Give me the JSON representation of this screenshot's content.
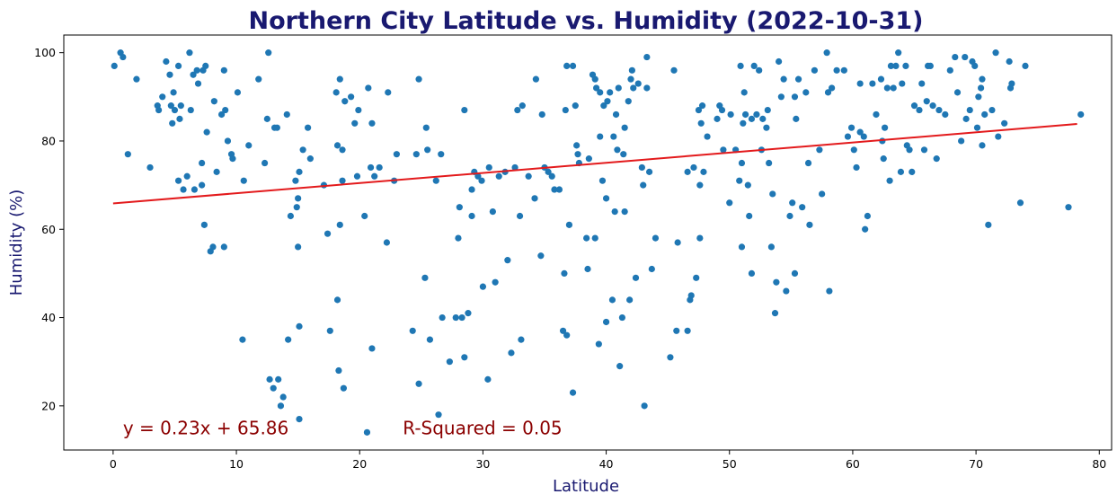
{
  "chart_data": {
    "type": "scatter",
    "title": "Northern City Latitude vs. Humidity (2022-10-31)",
    "xlabel": "Latitude",
    "ylabel": "Humidity (%)",
    "xlim": [
      -4,
      81
    ],
    "ylim": [
      10,
      104
    ],
    "x_ticks": [
      "0",
      "10",
      "20",
      "30",
      "40",
      "50",
      "60",
      "70",
      "80"
    ],
    "x_tick_values": [
      0,
      10,
      20,
      30,
      40,
      50,
      60,
      70,
      80
    ],
    "y_ticks": [
      "20",
      "40",
      "60",
      "80",
      "100"
    ],
    "y_tick_values": [
      20,
      40,
      60,
      80,
      100
    ],
    "grid": false,
    "colors": {
      "points": "#1f77b4",
      "regression": "#e31a1c",
      "annotation": "#8b0000",
      "title": "#191970"
    },
    "regression": {
      "slope": 0.23,
      "intercept": 65.86,
      "x_range": [
        0,
        78.2
      ]
    },
    "annotations": [
      {
        "text": "y = 0.23x + 65.86",
        "x": 0.8,
        "y": 15
      },
      {
        "text": "R-Squared = 0.05",
        "x": 23.5,
        "y": 15
      }
    ],
    "points": [
      [
        0.1,
        97
      ],
      [
        0.6,
        100
      ],
      [
        0.8,
        99
      ],
      [
        1.2,
        77
      ],
      [
        1.9,
        94
      ],
      [
        3.0,
        74
      ],
      [
        3.6,
        88
      ],
      [
        3.7,
        87
      ],
      [
        4.0,
        90
      ],
      [
        4.3,
        98
      ],
      [
        4.6,
        95
      ],
      [
        4.7,
        88
      ],
      [
        4.8,
        84
      ],
      [
        4.9,
        91
      ],
      [
        5.0,
        87
      ],
      [
        5.3,
        97
      ],
      [
        5.3,
        71
      ],
      [
        5.4,
        85
      ],
      [
        5.5,
        88
      ],
      [
        5.7,
        69
      ],
      [
        6.0,
        72
      ],
      [
        6.2,
        100
      ],
      [
        6.3,
        87
      ],
      [
        6.5,
        95
      ],
      [
        6.6,
        69
      ],
      [
        6.8,
        96
      ],
      [
        6.9,
        93
      ],
      [
        7.2,
        75
      ],
      [
        7.2,
        70
      ],
      [
        7.3,
        96
      ],
      [
        7.5,
        97
      ],
      [
        7.4,
        61
      ],
      [
        7.6,
        82
      ],
      [
        7.9,
        55
      ],
      [
        8.1,
        56
      ],
      [
        8.2,
        89
      ],
      [
        8.4,
        73
      ],
      [
        8.8,
        86
      ],
      [
        9.0,
        96
      ],
      [
        9.0,
        56
      ],
      [
        9.1,
        87
      ],
      [
        9.3,
        80
      ],
      [
        9.6,
        77
      ],
      [
        9.7,
        76
      ],
      [
        10.1,
        91
      ],
      [
        10.5,
        35
      ],
      [
        10.6,
        71
      ],
      [
        11.0,
        79
      ],
      [
        11.8,
        94
      ],
      [
        12.3,
        75
      ],
      [
        12.5,
        85
      ],
      [
        12.6,
        100
      ],
      [
        12.7,
        26
      ],
      [
        13.0,
        24
      ],
      [
        13.1,
        83
      ],
      [
        13.3,
        83
      ],
      [
        13.4,
        26
      ],
      [
        13.6,
        20
      ],
      [
        13.8,
        22
      ],
      [
        14.1,
        86
      ],
      [
        14.2,
        35
      ],
      [
        14.4,
        63
      ],
      [
        14.8,
        71
      ],
      [
        14.9,
        65
      ],
      [
        15.0,
        67
      ],
      [
        15.0,
        56
      ],
      [
        15.1,
        73
      ],
      [
        15.1,
        38
      ],
      [
        15.1,
        17
      ],
      [
        15.4,
        78
      ],
      [
        15.8,
        83
      ],
      [
        16.0,
        76
      ],
      [
        17.1,
        70
      ],
      [
        17.4,
        59
      ],
      [
        17.6,
        37
      ],
      [
        18.1,
        91
      ],
      [
        18.2,
        79
      ],
      [
        18.2,
        44
      ],
      [
        18.3,
        28
      ],
      [
        18.4,
        61
      ],
      [
        18.4,
        94
      ],
      [
        18.6,
        78
      ],
      [
        18.6,
        71
      ],
      [
        18.7,
        24
      ],
      [
        18.8,
        89
      ],
      [
        19.3,
        90
      ],
      [
        19.6,
        84
      ],
      [
        19.8,
        72
      ],
      [
        19.9,
        87
      ],
      [
        20.4,
        63
      ],
      [
        20.6,
        14
      ],
      [
        20.7,
        92
      ],
      [
        20.9,
        74
      ],
      [
        21.0,
        84
      ],
      [
        21.0,
        33
      ],
      [
        21.2,
        72
      ],
      [
        21.6,
        74
      ],
      [
        22.2,
        57
      ],
      [
        22.3,
        91
      ],
      [
        22.8,
        71
      ],
      [
        23.0,
        77
      ],
      [
        24.3,
        37
      ],
      [
        24.6,
        77
      ],
      [
        24.8,
        94
      ],
      [
        24.8,
        25
      ],
      [
        25.3,
        49
      ],
      [
        25.4,
        83
      ],
      [
        25.5,
        78
      ],
      [
        25.7,
        35
      ],
      [
        26.2,
        71
      ],
      [
        26.4,
        18
      ],
      [
        26.6,
        77
      ],
      [
        26.7,
        40
      ],
      [
        27.3,
        30
      ],
      [
        27.8,
        40
      ],
      [
        28.0,
        58
      ],
      [
        28.1,
        65
      ],
      [
        28.3,
        40
      ],
      [
        28.5,
        87
      ],
      [
        28.5,
        31
      ],
      [
        28.8,
        41
      ],
      [
        29.1,
        63
      ],
      [
        29.1,
        69
      ],
      [
        29.3,
        73
      ],
      [
        29.6,
        72
      ],
      [
        29.9,
        71
      ],
      [
        30.0,
        47
      ],
      [
        30.4,
        26
      ],
      [
        30.5,
        74
      ],
      [
        30.8,
        64
      ],
      [
        31.0,
        48
      ],
      [
        31.3,
        72
      ],
      [
        31.8,
        73
      ],
      [
        32.0,
        53
      ],
      [
        32.3,
        32
      ],
      [
        32.6,
        74
      ],
      [
        32.8,
        87
      ],
      [
        33.0,
        63
      ],
      [
        33.1,
        35
      ],
      [
        33.2,
        88
      ],
      [
        33.7,
        72
      ],
      [
        34.2,
        67
      ],
      [
        34.3,
        94
      ],
      [
        34.7,
        54
      ],
      [
        34.8,
        86
      ],
      [
        35.0,
        74
      ],
      [
        35.3,
        73
      ],
      [
        35.6,
        72
      ],
      [
        35.8,
        69
      ],
      [
        36.2,
        69
      ],
      [
        36.5,
        37
      ],
      [
        36.6,
        50
      ],
      [
        36.7,
        87
      ],
      [
        36.8,
        36
      ],
      [
        36.8,
        97
      ],
      [
        37.0,
        61
      ],
      [
        37.3,
        23
      ],
      [
        37.3,
        97
      ],
      [
        37.5,
        88
      ],
      [
        37.6,
        79
      ],
      [
        37.7,
        77
      ],
      [
        37.8,
        75
      ],
      [
        38.4,
        58
      ],
      [
        38.5,
        51
      ],
      [
        38.6,
        76
      ],
      [
        38.9,
        95
      ],
      [
        39.1,
        94
      ],
      [
        39.1,
        58
      ],
      [
        39.2,
        92
      ],
      [
        39.4,
        34
      ],
      [
        39.5,
        91
      ],
      [
        39.5,
        81
      ],
      [
        39.7,
        71
      ],
      [
        39.8,
        88
      ],
      [
        40.0,
        67
      ],
      [
        40.1,
        89
      ],
      [
        40.0,
        39
      ],
      [
        40.3,
        91
      ],
      [
        40.5,
        44
      ],
      [
        40.7,
        64
      ],
      [
        40.6,
        81
      ],
      [
        40.8,
        86
      ],
      [
        40.9,
        78
      ],
      [
        41.0,
        92
      ],
      [
        41.1,
        29
      ],
      [
        41.3,
        40
      ],
      [
        41.4,
        77
      ],
      [
        41.5,
        83
      ],
      [
        41.5,
        64
      ],
      [
        41.8,
        89
      ],
      [
        41.9,
        44
      ],
      [
        42.0,
        94
      ],
      [
        42.1,
        96
      ],
      [
        42.2,
        92
      ],
      [
        42.4,
        49
      ],
      [
        42.6,
        93
      ],
      [
        42.9,
        74
      ],
      [
        43.0,
        70
      ],
      [
        43.1,
        20
      ],
      [
        43.3,
        99
      ],
      [
        43.3,
        92
      ],
      [
        43.5,
        73
      ],
      [
        43.7,
        51
      ],
      [
        44.0,
        58
      ],
      [
        45.2,
        31
      ],
      [
        45.5,
        96
      ],
      [
        45.7,
        37
      ],
      [
        45.8,
        57
      ],
      [
        46.6,
        73
      ],
      [
        46.6,
        37
      ],
      [
        46.8,
        44
      ],
      [
        46.9,
        45
      ],
      [
        47.1,
        74
      ],
      [
        47.3,
        49
      ],
      [
        47.5,
        87
      ],
      [
        47.6,
        70
      ],
      [
        47.6,
        58
      ],
      [
        47.7,
        84
      ],
      [
        47.8,
        88
      ],
      [
        47.9,
        73
      ],
      [
        48.2,
        81
      ],
      [
        49.0,
        85
      ],
      [
        49.2,
        88
      ],
      [
        49.4,
        87
      ],
      [
        49.5,
        78
      ],
      [
        50.0,
        66
      ],
      [
        50.1,
        86
      ],
      [
        50.5,
        78
      ],
      [
        50.8,
        71
      ],
      [
        50.9,
        97
      ],
      [
        51.0,
        75
      ],
      [
        51.0,
        56
      ],
      [
        51.1,
        84
      ],
      [
        51.2,
        91
      ],
      [
        51.3,
        86
      ],
      [
        51.5,
        70
      ],
      [
        51.6,
        63
      ],
      [
        51.8,
        85
      ],
      [
        51.8,
        50
      ],
      [
        52.0,
        97
      ],
      [
        52.2,
        86
      ],
      [
        52.4,
        96
      ],
      [
        52.6,
        78
      ],
      [
        52.7,
        85
      ],
      [
        53.0,
        83
      ],
      [
        53.1,
        87
      ],
      [
        53.2,
        75
      ],
      [
        53.4,
        56
      ],
      [
        53.5,
        68
      ],
      [
        53.7,
        41
      ],
      [
        53.8,
        48
      ],
      [
        54.0,
        98
      ],
      [
        54.2,
        90
      ],
      [
        54.4,
        94
      ],
      [
        54.6,
        46
      ],
      [
        54.9,
        63
      ],
      [
        55.1,
        66
      ],
      [
        55.3,
        90
      ],
      [
        55.3,
        50
      ],
      [
        55.4,
        85
      ],
      [
        55.6,
        94
      ],
      [
        55.9,
        65
      ],
      [
        56.2,
        91
      ],
      [
        56.4,
        75
      ],
      [
        56.5,
        61
      ],
      [
        56.9,
        96
      ],
      [
        57.3,
        78
      ],
      [
        57.5,
        68
      ],
      [
        57.9,
        100
      ],
      [
        58.0,
        91
      ],
      [
        58.1,
        46
      ],
      [
        58.3,
        92
      ],
      [
        58.7,
        96
      ],
      [
        59.3,
        96
      ],
      [
        59.6,
        81
      ],
      [
        59.9,
        83
      ],
      [
        60.1,
        78
      ],
      [
        60.3,
        74
      ],
      [
        60.6,
        93
      ],
      [
        60.6,
        82
      ],
      [
        60.9,
        81
      ],
      [
        61.0,
        60
      ],
      [
        61.2,
        63
      ],
      [
        61.6,
        93
      ],
      [
        61.9,
        86
      ],
      [
        62.3,
        94
      ],
      [
        62.4,
        80
      ],
      [
        62.5,
        76
      ],
      [
        62.6,
        83
      ],
      [
        62.8,
        92
      ],
      [
        63.0,
        71
      ],
      [
        63.1,
        97
      ],
      [
        63.3,
        92
      ],
      [
        63.5,
        97
      ],
      [
        63.7,
        100
      ],
      [
        63.9,
        73
      ],
      [
        64.0,
        93
      ],
      [
        64.3,
        97
      ],
      [
        64.4,
        79
      ],
      [
        64.6,
        78
      ],
      [
        64.8,
        73
      ],
      [
        65.0,
        88
      ],
      [
        65.4,
        87
      ],
      [
        65.6,
        93
      ],
      [
        65.8,
        78
      ],
      [
        66.0,
        89
      ],
      [
        66.1,
        97
      ],
      [
        66.3,
        97
      ],
      [
        66.5,
        88
      ],
      [
        66.8,
        76
      ],
      [
        67.0,
        87
      ],
      [
        67.5,
        86
      ],
      [
        67.9,
        96
      ],
      [
        68.3,
        99
      ],
      [
        68.5,
        91
      ],
      [
        68.8,
        80
      ],
      [
        69.1,
        99
      ],
      [
        69.2,
        85
      ],
      [
        69.5,
        87
      ],
      [
        69.7,
        98
      ],
      [
        69.9,
        97
      ],
      [
        70.1,
        83
      ],
      [
        70.2,
        90
      ],
      [
        70.4,
        92
      ],
      [
        70.5,
        94
      ],
      [
        70.5,
        79
      ],
      [
        70.7,
        86
      ],
      [
        71.0,
        61
      ],
      [
        71.3,
        87
      ],
      [
        71.6,
        100
      ],
      [
        71.8,
        81
      ],
      [
        72.3,
        84
      ],
      [
        72.7,
        98
      ],
      [
        72.8,
        92
      ],
      [
        72.9,
        93
      ],
      [
        73.6,
        66
      ],
      [
        74.0,
        97
      ],
      [
        77.5,
        65
      ],
      [
        78.5,
        86
      ]
    ]
  }
}
